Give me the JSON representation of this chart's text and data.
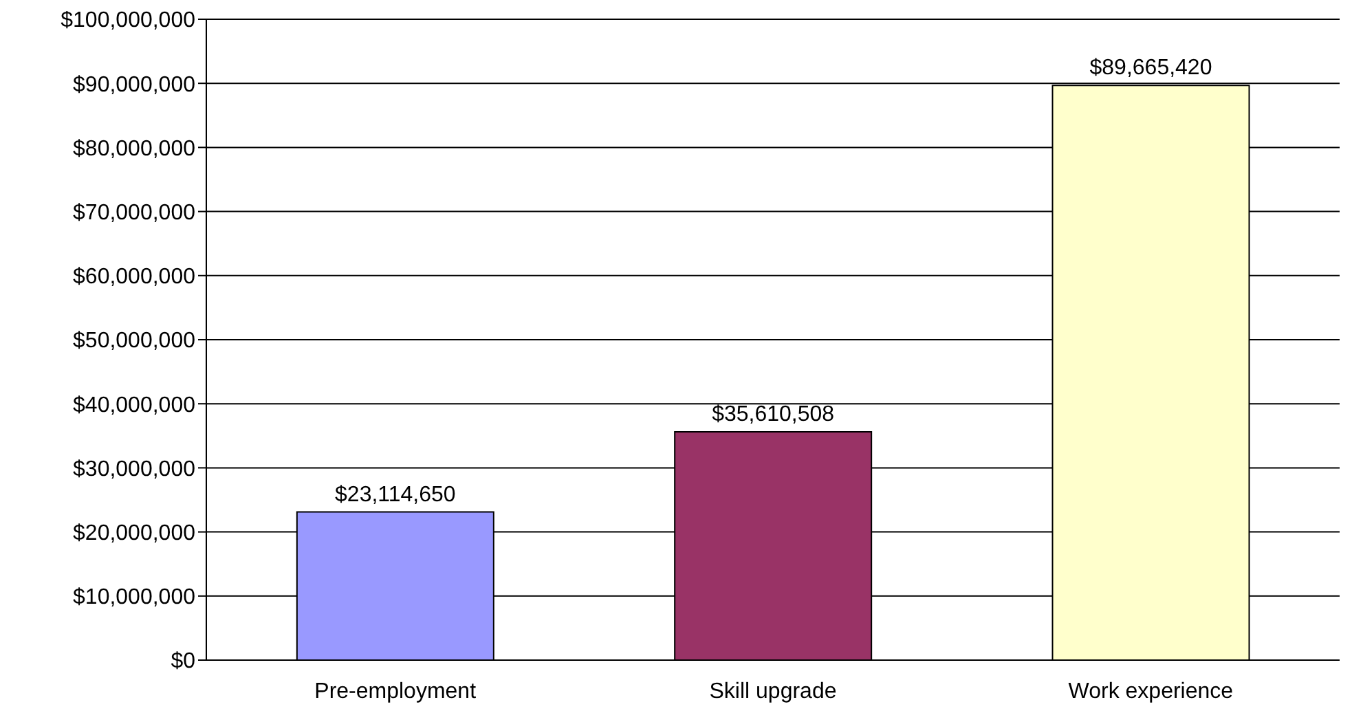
{
  "chart_data": {
    "type": "bar",
    "categories": [
      "Pre-employment",
      "Skill upgrade",
      "Work experience"
    ],
    "values": [
      23114650,
      35610508,
      89665420
    ],
    "colors": [
      "#9999ff",
      "#993366",
      "#ffffcc"
    ],
    "value_labels": [
      "$23,114,650",
      "$35,610,508",
      "$89,665,420"
    ],
    "ylim": [
      0,
      100000000
    ],
    "yticks": [
      {
        "value": 0,
        "label": "$0"
      },
      {
        "value": 10000000,
        "label": "$10,000,000"
      },
      {
        "value": 20000000,
        "label": "$20,000,000"
      },
      {
        "value": 30000000,
        "label": "$30,000,000"
      },
      {
        "value": 40000000,
        "label": "$40,000,000"
      },
      {
        "value": 50000000,
        "label": "$50,000,000"
      },
      {
        "value": 60000000,
        "label": "$60,000,000"
      },
      {
        "value": 70000000,
        "label": "$70,000,000"
      },
      {
        "value": 80000000,
        "label": "$80,000,000"
      },
      {
        "value": 90000000,
        "label": "$90,000,000"
      },
      {
        "value": 100000000,
        "label": "$100,000,000"
      }
    ],
    "grid": "y"
  }
}
